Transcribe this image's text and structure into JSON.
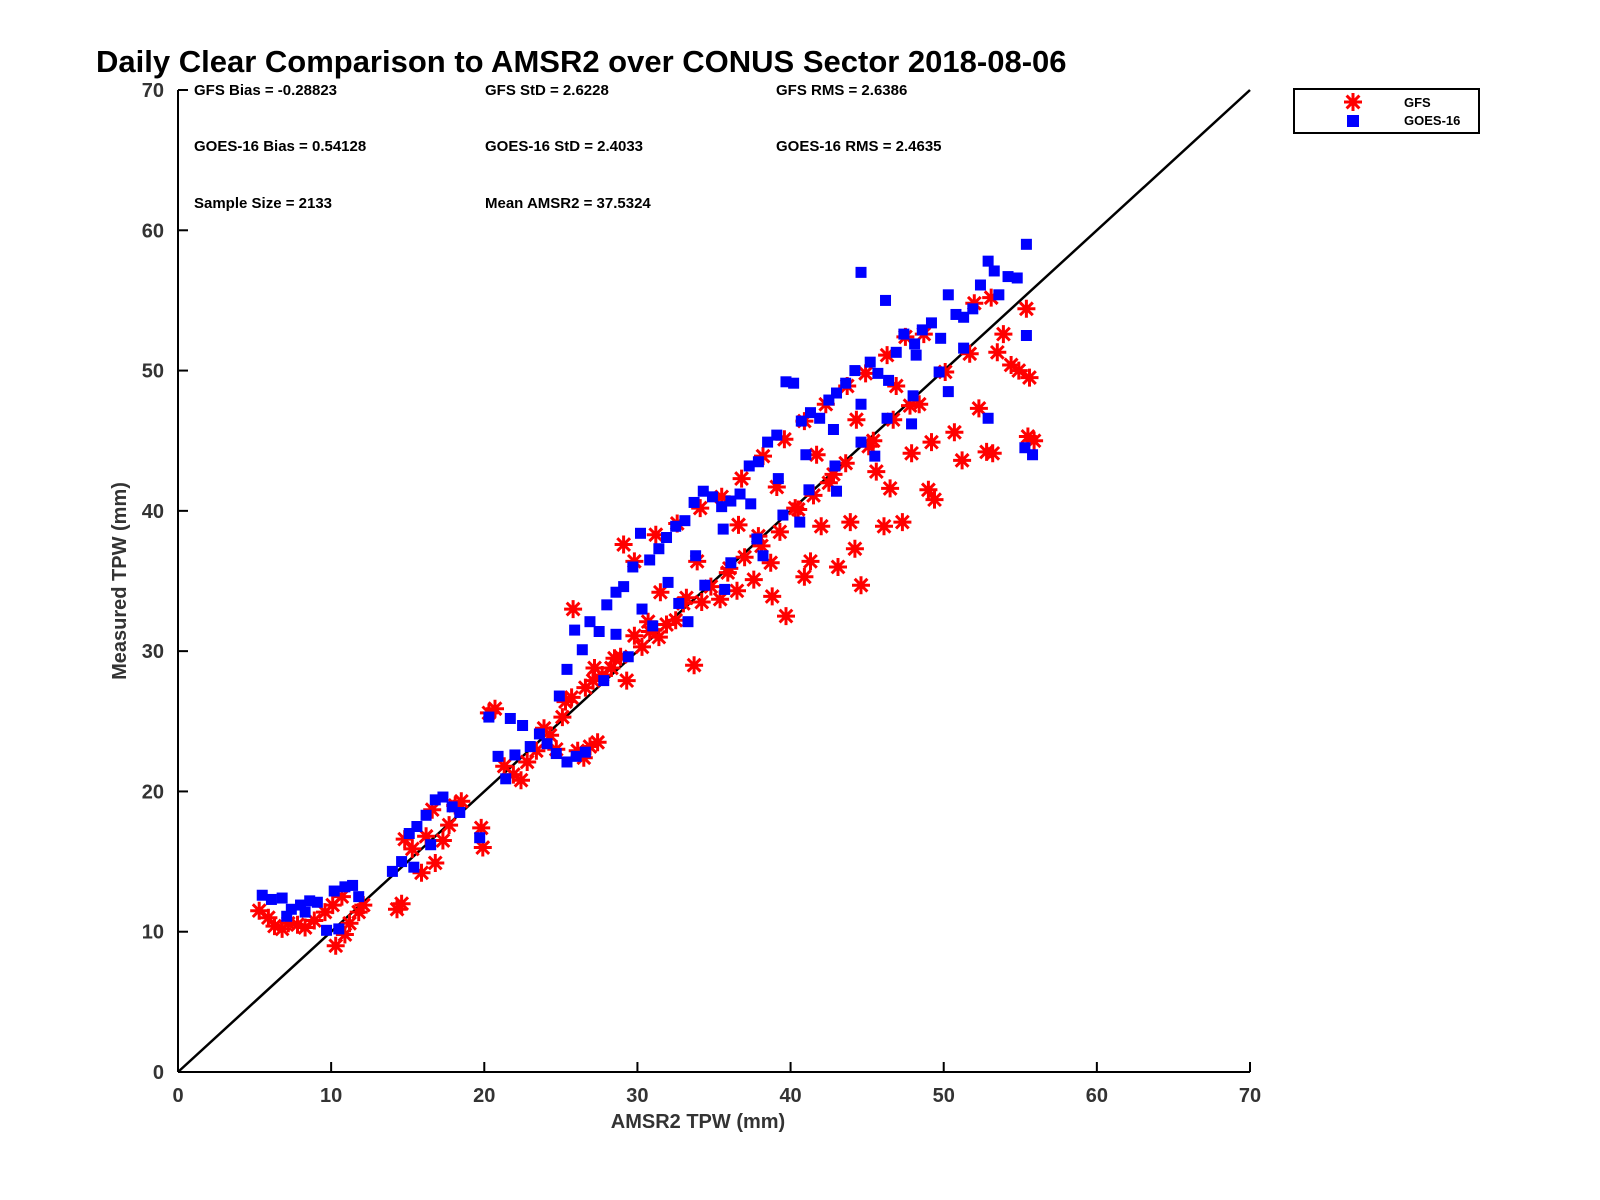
{
  "chart_data": {
    "type": "scatter",
    "title": "Daily Clear Comparison to AMSR2 over CONUS Sector 2018-08-06",
    "xlabel": "AMSR2 TPW (mm)",
    "ylabel": "Measured TPW (mm)",
    "xlim": [
      0,
      70
    ],
    "ylim": [
      0,
      70
    ],
    "xticks": [
      "0",
      "10",
      "20",
      "30",
      "40",
      "50",
      "60",
      "70"
    ],
    "yticks": [
      "0",
      "10",
      "20",
      "30",
      "40",
      "50",
      "60",
      "70"
    ],
    "grid": false,
    "legend_position": "outside-top-right",
    "reference_line": {
      "from": [
        0,
        0
      ],
      "to": [
        70,
        70
      ],
      "color": "#000000"
    },
    "stats": [
      "GFS Bias = -0.28823",
      "GFS StD = 2.6228",
      "GFS RMS = 2.6386",
      "GOES-16 Bias = 0.54128",
      "GOES-16 StD = 2.4033",
      "GOES-16 RMS = 2.4635",
      "Sample Size = 2133",
      "Mean AMSR2 = 37.5324"
    ],
    "series": [
      {
        "name": "GFS",
        "marker": "asterisk",
        "color": "#ff0000",
        "points": [
          [
            5.3,
            11.5
          ],
          [
            5.9,
            11.0
          ],
          [
            6.3,
            10.4
          ],
          [
            6.8,
            10.2
          ],
          [
            7.2,
            10.6
          ],
          [
            7.8,
            10.5
          ],
          [
            8.3,
            10.3
          ],
          [
            8.9,
            10.8
          ],
          [
            9.6,
            11.4
          ],
          [
            10.1,
            11.9
          ],
          [
            10.3,
            9.0
          ],
          [
            10.9,
            9.8
          ],
          [
            11.2,
            10.6
          ],
          [
            11.8,
            11.4
          ],
          [
            12.1,
            11.9
          ],
          [
            10.7,
            12.5
          ],
          [
            14.3,
            11.6
          ],
          [
            14.6,
            12.0
          ],
          [
            14.8,
            16.6
          ],
          [
            15.3,
            15.9
          ],
          [
            15.9,
            14.2
          ],
          [
            16.2,
            16.8
          ],
          [
            16.8,
            14.9
          ],
          [
            17.3,
            16.5
          ],
          [
            17.7,
            17.6
          ],
          [
            18.1,
            19.0
          ],
          [
            18.5,
            19.3
          ],
          [
            16.6,
            18.7
          ],
          [
            19.8,
            17.4
          ],
          [
            19.9,
            16.0
          ],
          [
            20.3,
            25.6
          ],
          [
            20.7,
            25.9
          ],
          [
            21.3,
            21.8
          ],
          [
            21.9,
            21.2
          ],
          [
            22.4,
            20.8
          ],
          [
            22.8,
            22.1
          ],
          [
            23.4,
            22.9
          ],
          [
            23.9,
            24.5
          ],
          [
            24.3,
            24.0
          ],
          [
            24.7,
            23.0
          ],
          [
            25.1,
            25.3
          ],
          [
            25.7,
            26.7
          ],
          [
            26.1,
            22.9
          ],
          [
            26.5,
            22.4
          ],
          [
            26.9,
            23.2
          ],
          [
            27.4,
            23.5
          ],
          [
            25.3,
            26.4
          ],
          [
            25.8,
            33.0
          ],
          [
            26.6,
            27.4
          ],
          [
            27.1,
            27.9
          ],
          [
            27.7,
            28.3
          ],
          [
            28.3,
            28.8
          ],
          [
            28.9,
            29.6
          ],
          [
            29.3,
            27.9
          ],
          [
            29.8,
            31.1
          ],
          [
            30.3,
            30.3
          ],
          [
            30.8,
            31.4
          ],
          [
            31.4,
            31.0
          ],
          [
            31.9,
            31.9
          ],
          [
            32.5,
            32.2
          ],
          [
            33.0,
            33.4
          ],
          [
            33.7,
            29.0
          ],
          [
            34.2,
            33.5
          ],
          [
            34.8,
            34.6
          ],
          [
            35.4,
            33.7
          ],
          [
            35.9,
            35.6
          ],
          [
            36.5,
            34.3
          ],
          [
            37.0,
            36.7
          ],
          [
            37.6,
            35.1
          ],
          [
            38.1,
            37.5
          ],
          [
            38.7,
            36.3
          ],
          [
            39.3,
            38.5
          ],
          [
            39.7,
            32.5
          ],
          [
            40.3,
            40.2
          ],
          [
            40.9,
            35.3
          ],
          [
            41.5,
            41.1
          ],
          [
            42.0,
            38.9
          ],
          [
            42.5,
            42.0
          ],
          [
            43.1,
            36.0
          ],
          [
            43.6,
            43.4
          ],
          [
            44.2,
            37.3
          ],
          [
            44.6,
            34.7
          ],
          [
            45.1,
            44.6
          ],
          [
            45.6,
            42.8
          ],
          [
            46.1,
            38.9
          ],
          [
            46.7,
            46.5
          ],
          [
            47.3,
            39.2
          ],
          [
            47.9,
            44.1
          ],
          [
            48.4,
            47.6
          ],
          [
            49.0,
            41.5
          ],
          [
            49.4,
            40.8
          ],
          [
            50.1,
            49.9
          ],
          [
            50.7,
            45.6
          ],
          [
            51.2,
            43.6
          ],
          [
            51.7,
            51.2
          ],
          [
            52.3,
            47.3
          ],
          [
            52.8,
            44.2
          ],
          [
            53.2,
            44.1
          ],
          [
            53.5,
            51.3
          ],
          [
            53.9,
            52.6
          ],
          [
            54.4,
            50.4
          ],
          [
            54.9,
            50.0
          ],
          [
            55.4,
            54.4
          ],
          [
            55.6,
            49.5
          ],
          [
            55.5,
            45.3
          ],
          [
            55.9,
            45.0
          ],
          [
            29.1,
            37.6
          ],
          [
            29.8,
            36.4
          ],
          [
            31.2,
            38.3
          ],
          [
            32.6,
            39.1
          ],
          [
            34.1,
            40.2
          ],
          [
            35.5,
            41.0
          ],
          [
            36.8,
            42.3
          ],
          [
            38.2,
            43.9
          ],
          [
            39.6,
            45.1
          ],
          [
            40.9,
            46.4
          ],
          [
            42.3,
            47.6
          ],
          [
            43.7,
            48.9
          ],
          [
            44.9,
            49.8
          ],
          [
            46.3,
            51.1
          ],
          [
            47.5,
            52.4
          ],
          [
            48.7,
            52.6
          ],
          [
            52.0,
            54.8
          ],
          [
            53.1,
            55.2
          ],
          [
            27.2,
            28.8
          ],
          [
            28.5,
            29.5
          ],
          [
            30.7,
            32.1
          ],
          [
            33.2,
            33.8
          ],
          [
            36.0,
            35.9
          ],
          [
            37.9,
            38.2
          ],
          [
            40.5,
            40.1
          ],
          [
            42.8,
            42.6
          ],
          [
            45.4,
            45.0
          ],
          [
            47.8,
            47.5
          ],
          [
            31.5,
            34.2
          ],
          [
            33.9,
            36.4
          ],
          [
            36.6,
            39.0
          ],
          [
            39.1,
            41.7
          ],
          [
            41.7,
            44.0
          ],
          [
            44.3,
            46.5
          ],
          [
            46.9,
            48.9
          ],
          [
            38.8,
            33.9
          ],
          [
            41.3,
            36.4
          ],
          [
            43.9,
            39.2
          ],
          [
            46.5,
            41.6
          ],
          [
            49.2,
            44.9
          ]
        ]
      },
      {
        "name": "GOES-16",
        "marker": "square",
        "color": "#0000ff",
        "points": [
          [
            5.5,
            12.6
          ],
          [
            6.1,
            12.3
          ],
          [
            6.8,
            12.4
          ],
          [
            7.4,
            11.6
          ],
          [
            8.0,
            11.9
          ],
          [
            8.6,
            12.2
          ],
          [
            9.1,
            12.1
          ],
          [
            9.7,
            10.1
          ],
          [
            10.2,
            12.9
          ],
          [
            10.5,
            10.2
          ],
          [
            10.9,
            13.2
          ],
          [
            11.4,
            13.3
          ],
          [
            11.8,
            12.5
          ],
          [
            7.1,
            11.1
          ],
          [
            8.3,
            11.4
          ],
          [
            14.0,
            14.3
          ],
          [
            14.6,
            15.0
          ],
          [
            15.1,
            17.0
          ],
          [
            15.6,
            17.5
          ],
          [
            16.2,
            18.3
          ],
          [
            16.8,
            19.4
          ],
          [
            17.3,
            19.6
          ],
          [
            17.9,
            18.9
          ],
          [
            18.4,
            18.5
          ],
          [
            15.4,
            14.6
          ],
          [
            16.5,
            16.2
          ],
          [
            19.7,
            16.7
          ],
          [
            20.3,
            25.3
          ],
          [
            20.9,
            22.5
          ],
          [
            21.4,
            20.9
          ],
          [
            22.0,
            22.6
          ],
          [
            22.5,
            24.7
          ],
          [
            23.0,
            23.2
          ],
          [
            23.6,
            24.1
          ],
          [
            24.1,
            23.4
          ],
          [
            24.7,
            22.7
          ],
          [
            25.4,
            22.1
          ],
          [
            26.0,
            22.5
          ],
          [
            26.6,
            22.8
          ],
          [
            21.7,
            25.2
          ],
          [
            24.9,
            26.8
          ],
          [
            25.4,
            28.7
          ],
          [
            25.9,
            31.5
          ],
          [
            26.4,
            30.1
          ],
          [
            26.9,
            32.1
          ],
          [
            27.5,
            31.4
          ],
          [
            28.0,
            33.3
          ],
          [
            28.6,
            34.2
          ],
          [
            29.1,
            34.6
          ],
          [
            29.7,
            36.0
          ],
          [
            30.2,
            38.4
          ],
          [
            30.8,
            36.5
          ],
          [
            31.4,
            37.3
          ],
          [
            31.9,
            38.1
          ],
          [
            32.5,
            38.9
          ],
          [
            33.1,
            39.3
          ],
          [
            33.7,
            40.6
          ],
          [
            34.3,
            41.4
          ],
          [
            34.9,
            41.0
          ],
          [
            35.5,
            40.3
          ],
          [
            36.1,
            40.7
          ],
          [
            36.7,
            41.2
          ],
          [
            37.3,
            43.2
          ],
          [
            37.9,
            43.5
          ],
          [
            38.5,
            44.9
          ],
          [
            39.1,
            45.4
          ],
          [
            39.7,
            49.2
          ],
          [
            40.2,
            49.1
          ],
          [
            40.7,
            46.4
          ],
          [
            41.3,
            47.0
          ],
          [
            41.9,
            46.6
          ],
          [
            42.5,
            47.9
          ],
          [
            43.0,
            48.4
          ],
          [
            43.6,
            49.1
          ],
          [
            44.2,
            50.0
          ],
          [
            44.6,
            57.0
          ],
          [
            45.2,
            50.6
          ],
          [
            45.7,
            49.8
          ],
          [
            46.2,
            55.0
          ],
          [
            46.9,
            51.3
          ],
          [
            47.4,
            52.6
          ],
          [
            48.1,
            51.9
          ],
          [
            48.6,
            52.9
          ],
          [
            49.2,
            53.4
          ],
          [
            49.8,
            52.3
          ],
          [
            50.3,
            55.4
          ],
          [
            50.8,
            54.0
          ],
          [
            51.3,
            53.8
          ],
          [
            51.9,
            54.4
          ],
          [
            52.4,
            56.1
          ],
          [
            52.9,
            57.8
          ],
          [
            53.3,
            57.1
          ],
          [
            53.6,
            55.4
          ],
          [
            54.2,
            56.7
          ],
          [
            54.8,
            56.6
          ],
          [
            55.4,
            59.0
          ],
          [
            55.4,
            52.5
          ],
          [
            55.3,
            44.5
          ],
          [
            55.8,
            44.0
          ],
          [
            52.9,
            46.6
          ],
          [
            27.8,
            27.9
          ],
          [
            29.4,
            29.6
          ],
          [
            31.0,
            31.8
          ],
          [
            32.7,
            33.4
          ],
          [
            34.4,
            34.7
          ],
          [
            36.1,
            36.3
          ],
          [
            37.8,
            38.0
          ],
          [
            39.5,
            39.7
          ],
          [
            41.2,
            41.5
          ],
          [
            42.9,
            43.2
          ],
          [
            44.6,
            44.9
          ],
          [
            46.3,
            46.6
          ],
          [
            48.0,
            48.2
          ],
          [
            49.7,
            49.9
          ],
          [
            51.3,
            51.6
          ],
          [
            28.6,
            31.2
          ],
          [
            30.3,
            33.0
          ],
          [
            32.0,
            34.9
          ],
          [
            33.8,
            36.8
          ],
          [
            35.6,
            38.7
          ],
          [
            37.4,
            40.5
          ],
          [
            39.2,
            42.3
          ],
          [
            41.0,
            44.0
          ],
          [
            42.8,
            45.8
          ],
          [
            44.6,
            47.6
          ],
          [
            46.4,
            49.3
          ],
          [
            48.2,
            51.1
          ],
          [
            33.3,
            32.1
          ],
          [
            35.7,
            34.4
          ],
          [
            38.2,
            36.8
          ],
          [
            40.6,
            39.2
          ],
          [
            43.0,
            41.4
          ],
          [
            45.5,
            43.9
          ],
          [
            47.9,
            46.2
          ],
          [
            50.3,
            48.5
          ]
        ]
      }
    ]
  }
}
